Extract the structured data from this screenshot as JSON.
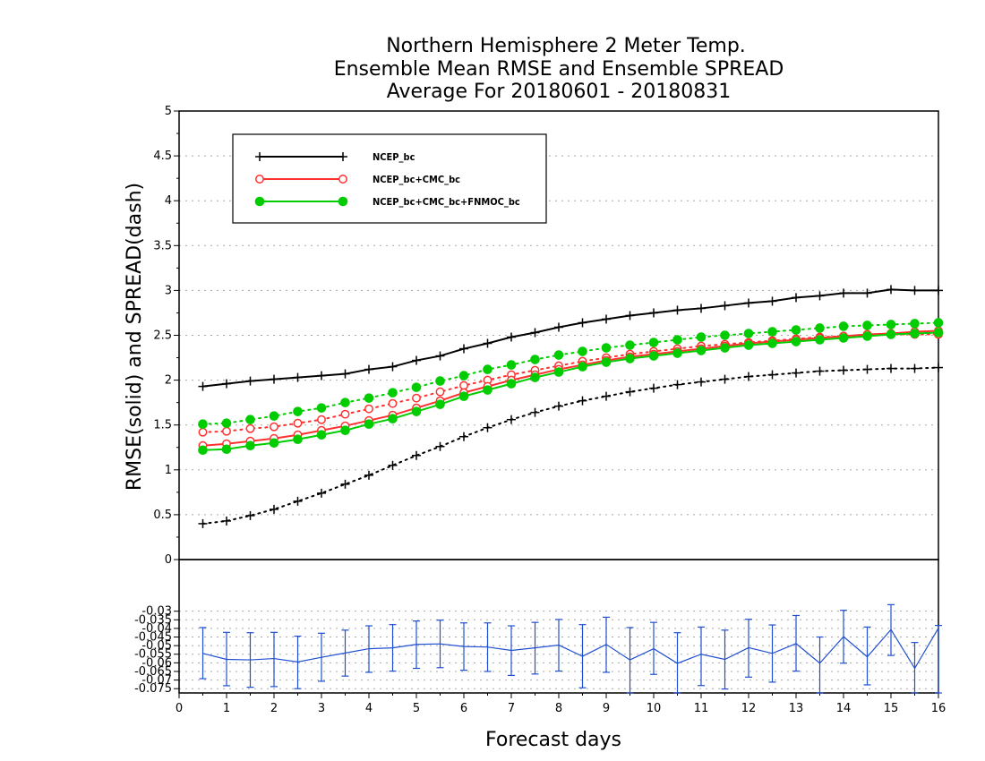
{
  "chart_data": {
    "type": "line",
    "title": [
      "Northern Hemisphere 2 Meter Temp.",
      "Ensemble Mean RMSE and Ensemble SPREAD",
      "Average For 20180601 - 20180831"
    ],
    "xlabel": "Forecast days",
    "ylabel": "RMSE(solid) and SPREAD(dash)",
    "xlim": [
      0,
      16
    ],
    "ylim": [
      0,
      5
    ],
    "ylim_bottom": [
      -0.0775,
      0
    ],
    "grid": true,
    "legend_position": "top-left",
    "x": [
      0.5,
      1,
      1.5,
      2,
      2.5,
      3,
      3.5,
      4,
      4.5,
      5,
      5.5,
      6,
      6.5,
      7,
      7.5,
      8,
      8.5,
      9,
      9.5,
      10,
      10.5,
      11,
      11.5,
      12,
      12.5,
      13,
      13.5,
      14,
      14.5,
      15,
      15.5,
      16
    ],
    "xticks": [
      "0",
      "1",
      "2",
      "3",
      "4",
      "5",
      "6",
      "7",
      "8",
      "9",
      "10",
      "11",
      "12",
      "13",
      "14",
      "15",
      "16"
    ],
    "yticks_top": [
      "0.5",
      "1",
      "1.5",
      "2",
      "2.5",
      "3",
      "3.5",
      "4",
      "4.5",
      "5"
    ],
    "yticks_bottom": [
      "0",
      "-0.03",
      "-0.035",
      "-0.04",
      "-0.045",
      "-0.05",
      "-0.055",
      "-0.06",
      "-0.065",
      "-0.07",
      "-0.075"
    ],
    "series": [
      {
        "name": "NCEP_bc",
        "color": "#000000",
        "marker": "plus",
        "rmse": [
          1.93,
          1.96,
          1.99,
          2.01,
          2.03,
          2.05,
          2.07,
          2.12,
          2.15,
          2.22,
          2.27,
          2.35,
          2.41,
          2.48,
          2.53,
          2.59,
          2.64,
          2.68,
          2.72,
          2.75,
          2.78,
          2.8,
          2.83,
          2.86,
          2.88,
          2.92,
          2.94,
          2.97,
          2.97,
          3.01,
          3.0,
          3.0
        ],
        "spread": [
          0.4,
          0.43,
          0.49,
          0.56,
          0.65,
          0.74,
          0.84,
          0.94,
          1.05,
          1.16,
          1.26,
          1.37,
          1.47,
          1.56,
          1.64,
          1.71,
          1.77,
          1.82,
          1.87,
          1.91,
          1.95,
          1.98,
          2.01,
          2.04,
          2.06,
          2.08,
          2.1,
          2.11,
          2.12,
          2.13,
          2.13,
          2.14
        ]
      },
      {
        "name": "NCEP_bc+CMC_bc",
        "color": "#ff3030",
        "marker": "open-circle",
        "rmse": [
          1.27,
          1.29,
          1.32,
          1.35,
          1.39,
          1.44,
          1.49,
          1.55,
          1.61,
          1.69,
          1.77,
          1.86,
          1.93,
          2.0,
          2.06,
          2.12,
          2.17,
          2.22,
          2.26,
          2.29,
          2.32,
          2.35,
          2.38,
          2.41,
          2.43,
          2.45,
          2.47,
          2.49,
          2.51,
          2.52,
          2.54,
          2.55
        ],
        "spread": [
          1.42,
          1.43,
          1.46,
          1.48,
          1.52,
          1.56,
          1.62,
          1.68,
          1.74,
          1.8,
          1.87,
          1.94,
          2.0,
          2.06,
          2.11,
          2.16,
          2.21,
          2.25,
          2.29,
          2.32,
          2.35,
          2.38,
          2.4,
          2.42,
          2.44,
          2.46,
          2.48,
          2.49,
          2.5,
          2.51,
          2.51,
          2.51
        ]
      },
      {
        "name": "NCEP_bc+CMC_bc+FNMOC_bc",
        "color": "#00cc00",
        "marker": "filled-circle",
        "rmse": [
          1.22,
          1.23,
          1.27,
          1.3,
          1.34,
          1.39,
          1.44,
          1.51,
          1.57,
          1.65,
          1.73,
          1.82,
          1.89,
          1.96,
          2.03,
          2.09,
          2.15,
          2.2,
          2.24,
          2.27,
          2.3,
          2.33,
          2.36,
          2.39,
          2.41,
          2.43,
          2.45,
          2.47,
          2.49,
          2.51,
          2.52,
          2.53
        ],
        "spread": [
          1.51,
          1.52,
          1.56,
          1.6,
          1.65,
          1.69,
          1.75,
          1.8,
          1.86,
          1.92,
          1.99,
          2.05,
          2.12,
          2.17,
          2.23,
          2.28,
          2.32,
          2.36,
          2.39,
          2.42,
          2.45,
          2.48,
          2.5,
          2.52,
          2.54,
          2.56,
          2.58,
          2.6,
          2.61,
          2.62,
          2.63,
          2.64
        ]
      }
    ],
    "difference": {
      "color": "#2050d0",
      "values": [
        -0.0545,
        -0.058,
        -0.0583,
        -0.0575,
        -0.0595,
        -0.0568,
        -0.0543,
        -0.0518,
        -0.0513,
        -0.0493,
        -0.049,
        -0.0505,
        -0.0508,
        -0.0528,
        -0.0513,
        -0.0497,
        -0.0562,
        -0.0493,
        -0.0583,
        -0.0518,
        -0.0603,
        -0.055,
        -0.058,
        -0.0512,
        -0.0545,
        -0.0488,
        -0.0602,
        -0.0448,
        -0.0565,
        -0.0407,
        -0.0632,
        -0.0398
      ],
      "upper": [
        -0.0395,
        -0.0423,
        -0.0425,
        -0.0423,
        -0.0445,
        -0.0428,
        -0.041,
        -0.0385,
        -0.0378,
        -0.0357,
        -0.0352,
        -0.0368,
        -0.0368,
        -0.0385,
        -0.0365,
        -0.0348,
        -0.0378,
        -0.0335,
        -0.0395,
        -0.0365,
        -0.0425,
        -0.0392,
        -0.041,
        -0.0347,
        -0.038,
        -0.0325,
        -0.045,
        -0.0295,
        -0.0392,
        -0.0262,
        -0.0482,
        -0.0383
      ],
      "lower": [
        -0.0692,
        -0.0733,
        -0.0742,
        -0.0738,
        -0.075,
        -0.0707,
        -0.0677,
        -0.0655,
        -0.0648,
        -0.0632,
        -0.0628,
        -0.0643,
        -0.065,
        -0.0673,
        -0.0665,
        -0.0648,
        -0.0745,
        -0.0655,
        -0.0775,
        -0.0667,
        -0.0775,
        -0.0732,
        -0.0752,
        -0.0683,
        -0.0712,
        -0.0648,
        -0.0775,
        -0.0602,
        -0.0728,
        -0.0557,
        -0.0775,
        -0.0775
      ]
    }
  }
}
